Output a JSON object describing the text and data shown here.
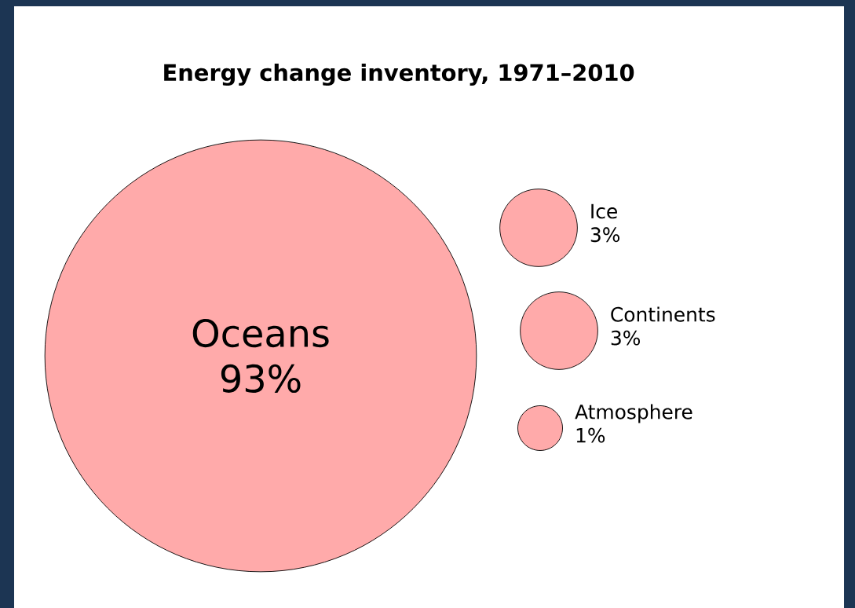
{
  "chart_data": {
    "type": "other",
    "title": "Energy change inventory, 1971–2010",
    "categories": [
      "Oceans",
      "Ice",
      "Continents",
      "Atmosphere"
    ],
    "values": [
      93,
      3,
      3,
      1
    ],
    "value_labels": [
      "93%",
      "3%",
      "3%",
      "1%"
    ],
    "color": "#ffaaaa"
  }
}
